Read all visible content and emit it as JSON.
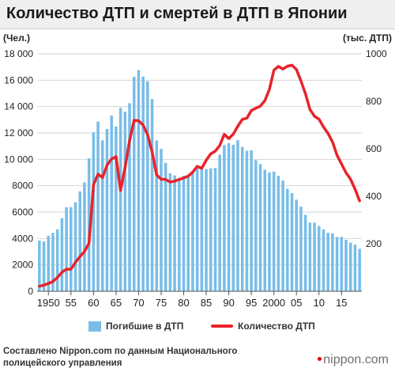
{
  "header": {
    "title": "Количество ДТП и смертей в ДТП в Японии"
  },
  "chart_data": {
    "type": "bar",
    "title": "Количество ДТП и смертей в ДТП в Японии",
    "ylabel_left": "(Чел.)",
    "ylabel_right": "(тыс. ДТП)",
    "ylim_left": [
      0,
      18000
    ],
    "ylim_right": [
      0,
      1000
    ],
    "yticks_left": [
      "0",
      "2000",
      "4000",
      "6000",
      "8000",
      "10 000",
      "12 000",
      "14 000",
      "16 000",
      "18 000"
    ],
    "yticks_right": [
      "200",
      "400",
      "600",
      "800",
      "1000"
    ],
    "x": [
      1948,
      1949,
      1950,
      1951,
      1952,
      1953,
      1954,
      1955,
      1956,
      1957,
      1958,
      1959,
      1960,
      1961,
      1962,
      1963,
      1964,
      1965,
      1966,
      1967,
      1968,
      1969,
      1970,
      1971,
      1972,
      1973,
      1974,
      1975,
      1976,
      1977,
      1978,
      1979,
      1980,
      1981,
      1982,
      1983,
      1984,
      1985,
      1986,
      1987,
      1988,
      1989,
      1990,
      1991,
      1992,
      1993,
      1994,
      1995,
      1996,
      1997,
      1998,
      1999,
      2000,
      2001,
      2002,
      2003,
      2004,
      2005,
      2006,
      2007,
      2008,
      2009,
      2010,
      2011,
      2012,
      2013,
      2014,
      2015,
      2016,
      2017,
      2018,
      2019
    ],
    "xticks": [
      "1950",
      "55",
      "60",
      "65",
      "70",
      "75",
      "80",
      "85",
      "90",
      "95",
      "2000",
      "05",
      "10",
      "15"
    ],
    "grid": true,
    "legend": "bottom",
    "series": [
      {
        "name": "Погибшие в ДТП",
        "type": "bar",
        "axis": "left",
        "color": "#79bde8",
        "values": [
          3848,
          3790,
          4202,
          4429,
          4696,
          5544,
          6374,
          6379,
          6751,
          7575,
          8248,
          10079,
          12055,
          12865,
          11445,
          12301,
          13318,
          12484,
          13904,
          13618,
          14256,
          16257,
          16765,
          16278,
          15918,
          14574,
          11432,
          10792,
          9734,
          8945,
          8783,
          8466,
          8760,
          8719,
          9073,
          9520,
          9262,
          9261,
          9317,
          9347,
          10344,
          11086,
          11227,
          11105,
          11452,
          10942,
          10649,
          10684,
          9942,
          9640,
          9211,
          9012,
          9073,
          8757,
          8396,
          7768,
          7436,
          6937,
          6415,
          5796,
          5209,
          5197,
          4948,
          4691,
          4438,
          4388,
          4113,
          4117,
          3904,
          3694,
          3532,
          3215
        ]
      },
      {
        "name": "Количество ДТП",
        "type": "line",
        "axis": "right",
        "color": "#e8232a",
        "values": [
          21,
          26,
          33,
          41,
          58,
          80,
          93,
          93,
          122,
          146,
          168,
          202,
          449,
          493,
          479,
          531,
          557,
          567,
          425,
          521,
          635,
          720,
          718,
          700,
          659,
          587,
          490,
          472,
          471,
          460,
          464,
          471,
          477,
          485,
          502,
          526,
          518,
          552,
          579,
          590,
          614,
          661,
          643,
          662,
          695,
          724,
          729,
          761,
          771,
          780,
          803,
          850,
          931,
          947,
          936,
          948,
          952,
          934,
          886,
          832,
          766,
          737,
          725,
          692,
          665,
          629,
          573,
          536,
          499,
          472,
          430,
          381
        ]
      }
    ]
  },
  "legend": {
    "bars_label": "Погибшие в ДТП",
    "line_label": "Количество ДТП"
  },
  "footer": {
    "source_line1": "Составлено Nippon.com по данным Национального",
    "source_line2": "полицейского управления",
    "logo": "nippon.com"
  }
}
